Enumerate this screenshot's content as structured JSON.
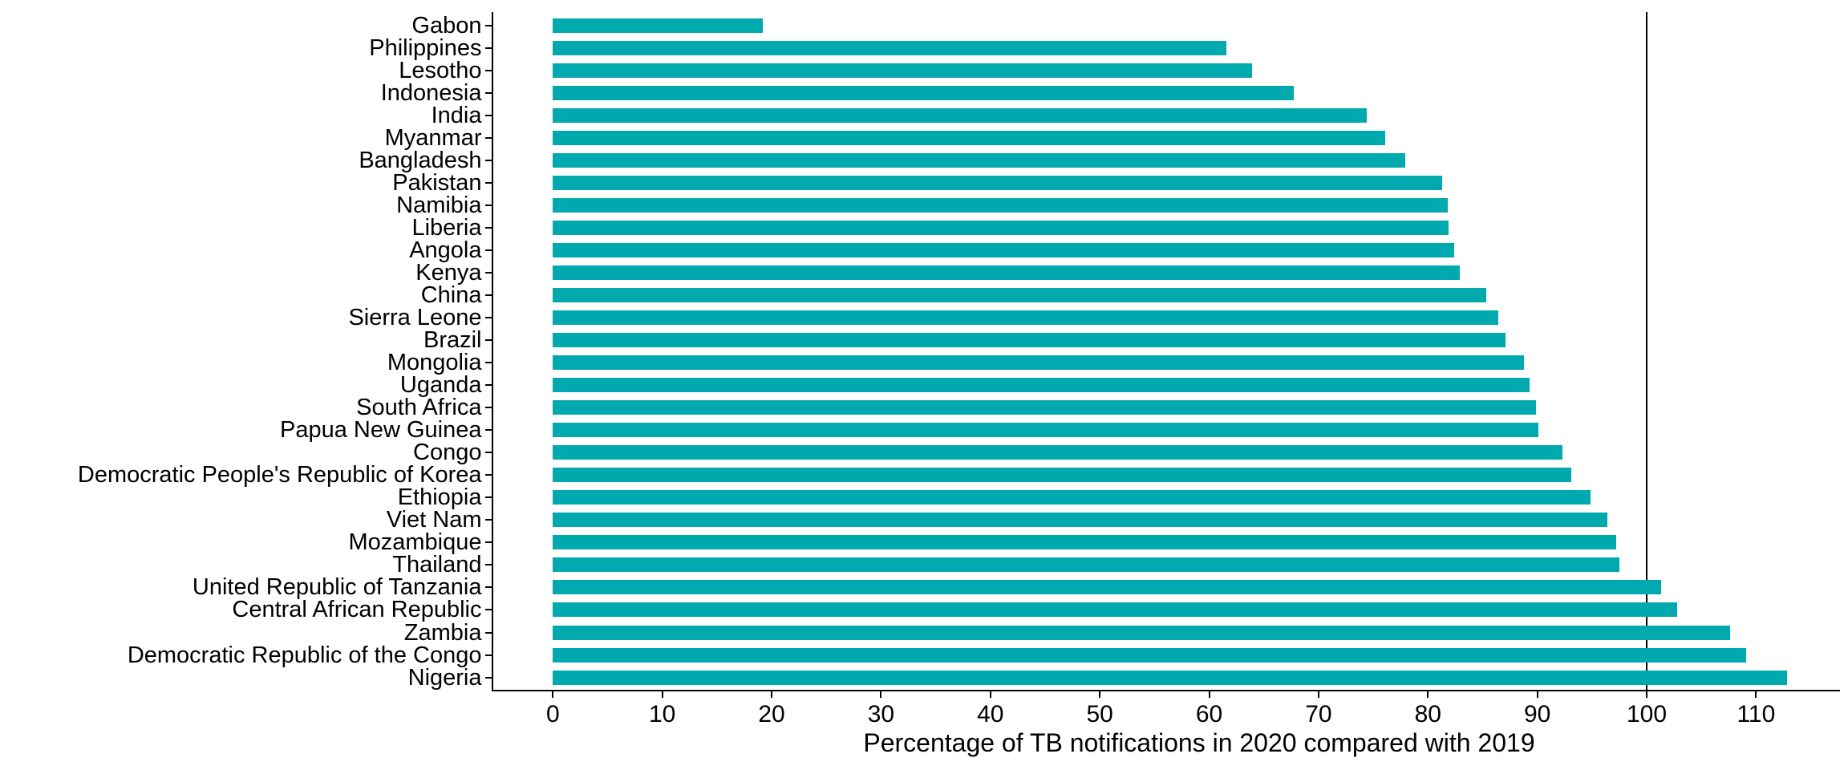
{
  "figure": {
    "background": "#ffffff",
    "axis_color": "#000000",
    "bar_color": "#00A9AD"
  },
  "chart_data": {
    "type": "bar",
    "orientation": "horizontal",
    "title": "",
    "xlabel": "Percentage of TB notifications in 2020 compared with 2019",
    "ylabel": "",
    "xlim": [
      0,
      117
    ],
    "x_ticks": [
      0,
      10,
      20,
      30,
      40,
      50,
      60,
      70,
      80,
      90,
      100,
      110
    ],
    "grid": false,
    "legend": "none",
    "reference_line_x": 100,
    "categories": [
      "Gabon",
      "Philippines",
      "Lesotho",
      "Indonesia",
      "India",
      "Myanmar",
      "Bangladesh",
      "Pakistan",
      "Namibia",
      "Liberia",
      "Angola",
      "Kenya",
      "China",
      "Sierra Leone",
      "Brazil",
      "Mongolia",
      "Uganda",
      "South Africa",
      "Papua New Guinea",
      "Congo",
      "Democratic People's Republic of Korea",
      "Ethiopia",
      "Viet Nam",
      "Mozambique",
      "Thailand",
      "United Republic of Tanzania",
      "Central African Republic",
      "Zambia",
      "Democratic Republic of the Congo",
      "Nigeria"
    ],
    "values": [
      19.2,
      61.6,
      63.9,
      67.7,
      74.4,
      76.1,
      77.9,
      81.3,
      81.8,
      81.9,
      82.4,
      82.9,
      85.3,
      86.4,
      87.1,
      88.8,
      89.3,
      89.9,
      90.1,
      92.3,
      93.1,
      94.9,
      96.4,
      97.2,
      97.5,
      101.3,
      102.8,
      107.6,
      109.1,
      112.8
    ]
  }
}
